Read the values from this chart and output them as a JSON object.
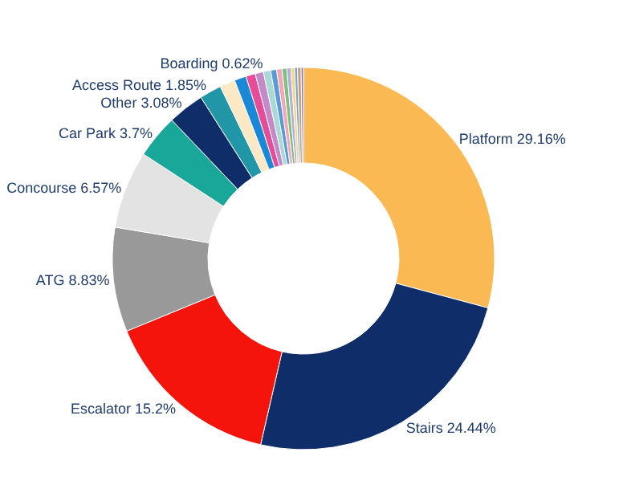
{
  "chart_data": {
    "type": "donut",
    "value_labels": [
      "29.16%",
      "24.44%",
      "15.2%",
      "8.83%",
      "6.57%",
      "3.7%",
      "3.08%",
      "1.85%",
      null,
      null,
      null,
      null,
      "0.62%",
      null,
      null,
      null,
      null,
      null,
      null,
      null,
      null
    ],
    "categories": [
      "Platform",
      "Stairs",
      "Escalator",
      "ATG",
      "Concourse",
      "Car Park",
      "Other",
      "Access Route",
      null,
      null,
      null,
      null,
      "Boarding",
      null,
      null,
      null,
      null,
      null,
      null,
      null,
      null
    ],
    "values": [
      29.16,
      24.44,
      15.2,
      8.83,
      6.57,
      3.7,
      3.08,
      1.85,
      1.3,
      1.0,
      0.8,
      0.7,
      0.62,
      0.5,
      0.45,
      0.4,
      0.35,
      0.3,
      0.25,
      0.3,
      0.2
    ],
    "colors": [
      "#fbb954",
      "#0f2d69",
      "#f5140c",
      "#999999",
      "#e3e3e3",
      "#19a79a",
      "#0f2d69",
      "#2196a7",
      "#fbe8c4",
      "#1a88d6",
      "#e64c9a",
      "#c48ac8",
      "#a9d8d8",
      "#5b9bd5",
      "#f4a6b8",
      "#7fbf7f",
      "#b0b0d8",
      "#ffd27f",
      "#6fa8dc",
      "#c9a06b",
      "#8e7cc3"
    ]
  }
}
